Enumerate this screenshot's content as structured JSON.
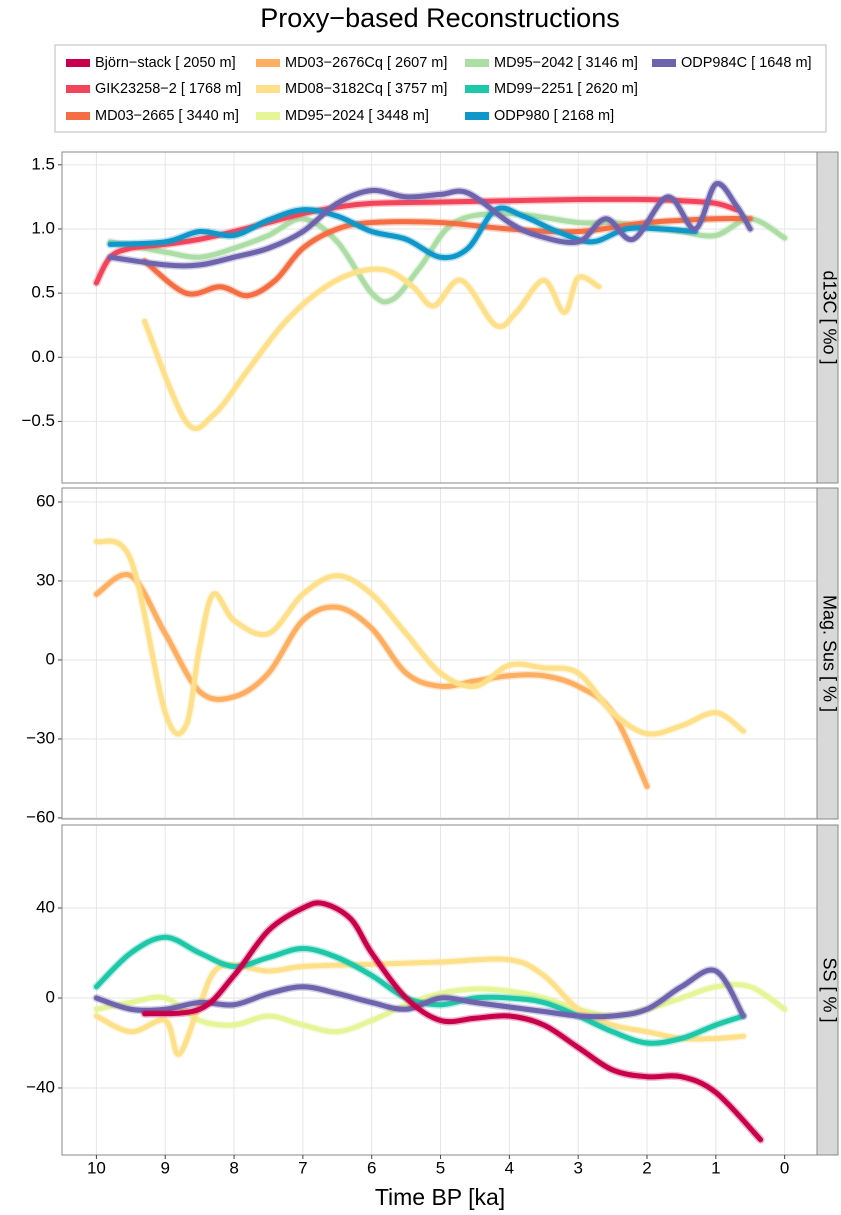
{
  "chart_data": {
    "type": "line",
    "title": "Proxy−based Reconstructions",
    "xlabel": "Time BP [ka]",
    "xlim": [
      10.5,
      -0.47
    ],
    "xticks": [
      10,
      9,
      8,
      7,
      6,
      5,
      4,
      3,
      2,
      1,
      0
    ],
    "grid": true,
    "legend": [
      {
        "name": "Björn−stack [ 2050 m]",
        "color": "#c8004b"
      },
      {
        "name": "GIK23258−2 [ 1768 m]",
        "color": "#f2455b"
      },
      {
        "name": "MD03−2665 [ 3440 m]",
        "color": "#f46d43"
      },
      {
        "name": "MD03−2676Cq [ 2607 m]",
        "color": "#fdae61"
      },
      {
        "name": "MD08−3182Cq [ 3757 m]",
        "color": "#fee08b"
      },
      {
        "name": "MD95−2024 [ 3448 m]",
        "color": "#e6f598"
      },
      {
        "name": "MD95−2042 [ 3146 m]",
        "color": "#abdda4"
      },
      {
        "name": "MD99−2251 [ 2620 m]",
        "color": "#1dc7a8"
      },
      {
        "name": "ODP980 [ 2168 m]",
        "color": "#1097c9"
      },
      {
        "name": "ODP984C [ 1648 m]",
        "color": "#6e63ad"
      }
    ],
    "panels": [
      {
        "ylabel": "d13C [ %o ]",
        "ylim": [
          -0.98,
          1.6
        ],
        "yticks": [
          1.5,
          {
            "value": 1,
            "label": "1.0"
          },
          0.5,
          {
            "value": 0,
            "label": "0.0"
          },
          {
            "value": -0.5,
            "label": "−0.5"
          }
        ],
        "series": [
          {
            "name": "MD95−2042 [ 3146 m]",
            "color": "#abdda4",
            "x": [
              9.8,
              9,
              8.5,
              8,
              7.5,
              7,
              6.5,
              6,
              5.7,
              5.3,
              4.8,
              4,
              3,
              2.5,
              2,
              1.5,
              1,
              0.5,
              0
            ],
            "values": [
              0.9,
              0.82,
              0.78,
              0.85,
              0.95,
              1.08,
              0.9,
              0.5,
              0.45,
              0.7,
              1.05,
              1.12,
              1.05,
              1.05,
              1.02,
              0.98,
              0.95,
              1.08,
              0.93
            ]
          },
          {
            "name": "MD08−3182Cq [ 3757 m]",
            "color": "#fee08b",
            "x": [
              9.3,
              8.7,
              8.3,
              7.8,
              7.3,
              6.8,
              6.3,
              5.8,
              5.4,
              5.1,
              4.7,
              4.2,
              3.9,
              3.5,
              3.2,
              3.0,
              2.7
            ],
            "values": [
              0.28,
              -0.5,
              -0.45,
              -0.1,
              0.25,
              0.5,
              0.65,
              0.68,
              0.55,
              0.4,
              0.6,
              0.25,
              0.35,
              0.6,
              0.35,
              0.62,
              0.55
            ]
          },
          {
            "name": "MD03−2665 [ 3440 m]",
            "color": "#f46d43",
            "x": [
              9.3,
              8.7,
              8.2,
              7.8,
              7.4,
              7,
              6.5,
              6,
              5,
              4,
              3,
              2,
              1,
              0.5
            ],
            "values": [
              0.75,
              0.5,
              0.55,
              0.48,
              0.6,
              0.85,
              1.0,
              1.05,
              1.05,
              1.0,
              0.98,
              1.05,
              1.08,
              1.08
            ]
          },
          {
            "name": "GIK23258−2 [ 1768 m]",
            "color": "#f2455b",
            "x": [
              10,
              9.8,
              9.5,
              9,
              8.5,
              8,
              7.5,
              7,
              6.5,
              6,
              5,
              4,
              3,
              2,
              1.5,
              1,
              0.7
            ],
            "values": [
              0.58,
              0.78,
              0.85,
              0.88,
              0.92,
              0.98,
              1.05,
              1.12,
              1.17,
              1.2,
              1.21,
              1.22,
              1.23,
              1.23,
              1.22,
              1.2,
              1.15
            ]
          },
          {
            "name": "ODP980 [ 2168 m]",
            "color": "#1097c9",
            "x": [
              9.8,
              9,
              8.5,
              8,
              7.5,
              7,
              6.5,
              6,
              5.5,
              5,
              4.6,
              4.2,
              3.8,
              3.3,
              2.8,
              2.3,
              1.8,
              1.3
            ],
            "values": [
              0.88,
              0.9,
              0.98,
              0.95,
              1.07,
              1.15,
              1.1,
              0.98,
              0.92,
              0.78,
              0.85,
              1.15,
              1.1,
              0.98,
              0.9,
              1.0,
              1.0,
              0.98
            ]
          },
          {
            "name": "ODP984C [ 1648 m]",
            "color": "#6e63ad",
            "x": [
              9.8,
              9,
              8.5,
              8,
              7.5,
              7,
              6.5,
              6,
              5.5,
              5,
              4.6,
              4,
              3.6,
              3,
              2.6,
              2.2,
              1.7,
              1.3,
              1.0,
              0.7,
              0.5
            ],
            "values": [
              0.78,
              0.72,
              0.72,
              0.78,
              0.85,
              0.98,
              1.2,
              1.3,
              1.25,
              1.27,
              1.28,
              1.05,
              0.95,
              0.9,
              1.08,
              0.92,
              1.25,
              1.0,
              1.35,
              1.18,
              1.0
            ]
          }
        ]
      },
      {
        "ylabel": "Mag. Sus [ % ]",
        "ylim": [
          -60.4,
          65.3
        ],
        "yticks": [
          60,
          30,
          0,
          {
            "value": -30,
            "label": "−30"
          },
          {
            "value": -60,
            "label": "−60"
          }
        ],
        "series": [
          {
            "name": "MD03−2676Cq [ 2607 m]",
            "color": "#fdae61",
            "x": [
              10,
              9.5,
              9,
              8.5,
              8,
              7.5,
              7,
              6.5,
              6,
              5.5,
              5,
              4.5,
              4,
              3.5,
              3,
              2.5,
              2
            ],
            "values": [
              25,
              32,
              10,
              -12,
              -14,
              -5,
              15,
              20,
              12,
              -5,
              -10,
              -8,
              -6,
              -6,
              -10,
              -20,
              -48
            ]
          },
          {
            "name": "MD08−3182Cq [ 3757 m]",
            "color": "#fee08b",
            "x": [
              10,
              9.5,
              9,
              8.7,
              8.5,
              8.3,
              8,
              7.5,
              7,
              6.5,
              6,
              5.5,
              5,
              4.5,
              4,
              3.5,
              3,
              2.5,
              2,
              1.5,
              1,
              0.6
            ],
            "values": [
              45,
              38,
              -20,
              -25,
              5,
              25,
              15,
              10,
              25,
              32,
              25,
              10,
              -5,
              -10,
              -2,
              -3,
              -5,
              -20,
              -28,
              -25,
              -20,
              -27
            ]
          }
        ]
      },
      {
        "ylabel": "SS [ % ]",
        "ylim": [
          -69.8,
          76.9
        ],
        "yticks": [
          40,
          0,
          {
            "value": -40,
            "label": "−40"
          }
        ],
        "series": [
          {
            "name": "MD95−2024 [ 3448 m]",
            "color": "#e6f598",
            "x": [
              10,
              9.5,
              9,
              8.5,
              8,
              7.5,
              7,
              6.5,
              6,
              5.5,
              5,
              4.5,
              4,
              3.5,
              3,
              2.5,
              2,
              1.5,
              1,
              0.5,
              0
            ],
            "values": [
              -5,
              -2,
              0,
              -10,
              -12,
              -8,
              -12,
              -15,
              -10,
              -3,
              2,
              4,
              3,
              0,
              -5,
              -8,
              -5,
              0,
              5,
              5,
              -5
            ]
          },
          {
            "name": "MD08−3182Cq [ 3757 m]",
            "color": "#fee08b",
            "x": [
              10,
              9.5,
              9,
              8.8,
              8.5,
              8.2,
              7.5,
              7,
              6,
              5,
              4,
              3.5,
              3,
              2.5,
              2,
              1.5,
              1,
              0.6
            ],
            "values": [
              -8,
              -15,
              -10,
              -25,
              -3,
              14,
              12,
              14,
              15,
              16,
              17,
              10,
              -5,
              -12,
              -15,
              -18,
              -18,
              -17
            ]
          },
          {
            "name": "MD99−2251 [ 2620 m]",
            "color": "#1dc7a8",
            "x": [
              10,
              9.5,
              9,
              8.5,
              8,
              7.5,
              7,
              6.5,
              6,
              5.5,
              5,
              4.5,
              4,
              3.5,
              3,
              2.5,
              2,
              1.5,
              1,
              0.6
            ],
            "values": [
              5,
              20,
              27,
              20,
              14,
              18,
              22,
              18,
              10,
              0,
              -3,
              0,
              0,
              -2,
              -8,
              -15,
              -20,
              -18,
              -12,
              -8
            ]
          },
          {
            "name": "ODP984C [ 1648 m]",
            "color": "#6e63ad",
            "x": [
              10,
              9.5,
              9,
              8.5,
              8,
              7.5,
              7,
              6.5,
              6,
              5.5,
              5,
              4.5,
              4,
              3.5,
              3,
              2.5,
              2,
              1.5,
              1.0,
              0.6
            ],
            "values": [
              0,
              -5,
              -5,
              -2,
              -3,
              2,
              5,
              2,
              -2,
              -5,
              0,
              -2,
              -4,
              -6,
              -8,
              -8,
              -5,
              5,
              12,
              -8
            ]
          },
          {
            "name": "Björn−stack [ 2050 m]",
            "color": "#c8004b",
            "x": [
              9.3,
              8.5,
              8,
              7.5,
              7,
              6.7,
              6.3,
              6,
              5.5,
              5,
              4.5,
              4,
              3.5,
              3,
              2.5,
              2,
              1.5,
              1.0,
              0.35
            ],
            "values": [
              -7,
              -5,
              10,
              30,
              40,
              42,
              35,
              20,
              0,
              -10,
              -9,
              -8,
              -12,
              -22,
              -32,
              -35,
              -35,
              -42,
              -63
            ]
          }
        ]
      }
    ]
  }
}
